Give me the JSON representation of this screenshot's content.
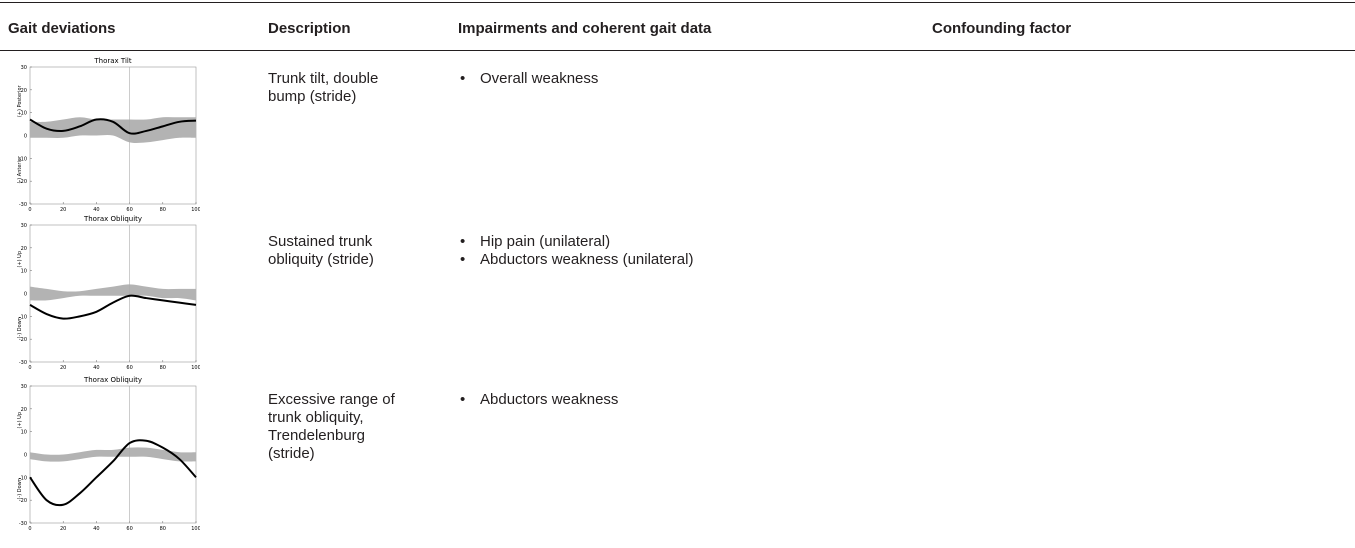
{
  "table": {
    "headers": [
      "Gait deviations",
      "Description",
      "Impairments and coherent gait data",
      "Confounding factor"
    ],
    "rows": [
      {
        "chart": {
          "type": "line",
          "title": "Thorax Tilt",
          "ylabel_top": "(+) Posterior",
          "ylabel_bottom": "(-) Anterior",
          "x": [
            0,
            10,
            20,
            30,
            40,
            50,
            60,
            70,
            80,
            90,
            100
          ],
          "values": [
            7,
            3,
            2,
            4,
            7,
            6,
            1,
            2,
            4,
            6,
            6.5
          ],
          "band": {
            "upper": [
              6,
              6,
              7,
              8,
              7,
              7,
              7,
              7,
              8,
              8,
              8
            ],
            "lower": [
              -1,
              -1,
              -1,
              0,
              0,
              0,
              -3,
              -3,
              -2,
              -1,
              -1
            ]
          },
          "vline": 60,
          "xlim": [
            0,
            100
          ],
          "ylim": [
            -30,
            30
          ],
          "xticks": [
            0,
            20,
            40,
            60,
            80,
            100
          ],
          "yticks": [
            30,
            20,
            10,
            0,
            -10,
            -20,
            -30
          ]
        },
        "description": "Trunk tilt, double bump (stride)",
        "impairments": [
          "Overall weakness"
        ]
      },
      {
        "chart": {
          "type": "line",
          "title": "Thorax Obliquity",
          "ylabel_top": "(+) Up",
          "ylabel_bottom": "(-) Down",
          "x": [
            0,
            10,
            20,
            30,
            40,
            50,
            60,
            70,
            80,
            90,
            100
          ],
          "values": [
            -5,
            -9,
            -11,
            -10,
            -8,
            -4,
            -1,
            -2,
            -3,
            -4,
            -5
          ],
          "band": {
            "upper": [
              3,
              2,
              1,
              1,
              2,
              3,
              4,
              3,
              2,
              2,
              2
            ],
            "lower": [
              -3,
              -3,
              -2,
              -1,
              -1,
              -1,
              -1,
              -1,
              -2,
              -2,
              -3
            ]
          },
          "vline": 60,
          "xlim": [
            0,
            100
          ],
          "ylim": [
            -30,
            30
          ],
          "xticks": [
            0,
            20,
            40,
            60,
            80,
            100
          ],
          "yticks": [
            30,
            20,
            10,
            0,
            -10,
            -20,
            -30
          ]
        },
        "description": "Sustained trunk obliquity (stride)",
        "impairments": [
          "Hip pain (unilateral)",
          "Abductors weakness (unilateral)"
        ]
      },
      {
        "chart": {
          "type": "line",
          "title": "Thorax Obliquity",
          "ylabel_top": "(+) Up",
          "ylabel_bottom": "(-) Down",
          "x": [
            0,
            10,
            20,
            30,
            40,
            50,
            60,
            70,
            80,
            90,
            100
          ],
          "values": [
            -10,
            -20,
            -22,
            -17,
            -10,
            -3,
            5,
            6,
            3,
            -2,
            -10
          ],
          "band": {
            "upper": [
              1,
              0,
              0,
              1,
              2,
              2,
              3,
              3,
              2,
              1,
              1
            ],
            "lower": [
              -2,
              -3,
              -3,
              -2,
              -1,
              -1,
              -1,
              -1,
              -2,
              -3,
              -3
            ]
          },
          "vline": 60,
          "xlim": [
            0,
            100
          ],
          "ylim": [
            -30,
            30
          ],
          "xticks": [
            0,
            20,
            40,
            60,
            80,
            100
          ],
          "yticks": [
            30,
            20,
            10,
            0,
            -10,
            -20,
            -30
          ]
        },
        "description": "Excessive range of trunk obliquity, Trendelenburg (stride)",
        "impairments": [
          "Abductors weakness"
        ]
      }
    ]
  }
}
